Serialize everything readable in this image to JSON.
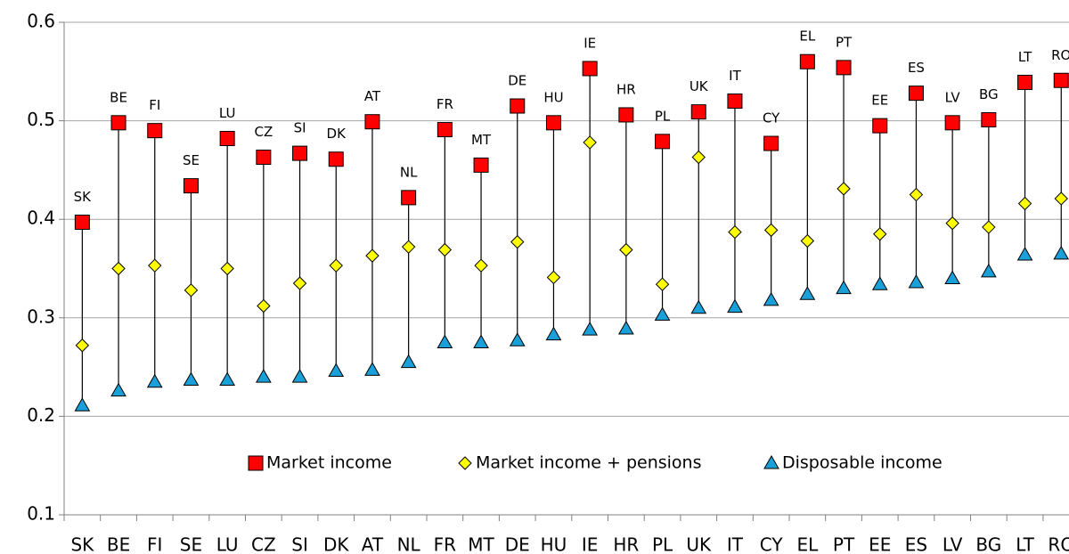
{
  "chart_data": {
    "type": "dotrange",
    "categories": [
      "SK",
      "BE",
      "FI",
      "SE",
      "LU",
      "CZ",
      "SI",
      "DK",
      "AT",
      "NL",
      "FR",
      "MT",
      "DE",
      "HU",
      "IE",
      "HR",
      "PL",
      "UK",
      "IT",
      "CY",
      "EL",
      "PT",
      "EE",
      "ES",
      "LV",
      "BG",
      "LT",
      "RO"
    ],
    "series": [
      {
        "name": "Market income",
        "color": "#ff0000",
        "marker": "square",
        "values": [
          0.397,
          0.498,
          0.49,
          0.434,
          0.482,
          0.463,
          0.467,
          0.461,
          0.499,
          0.422,
          0.491,
          0.455,
          0.515,
          0.498,
          0.553,
          0.506,
          0.479,
          0.509,
          0.52,
          0.477,
          0.56,
          0.554,
          0.495,
          0.528,
          0.498,
          0.501,
          0.539,
          0.541
        ]
      },
      {
        "name": "Market income + pensions",
        "color": "#ffff00",
        "marker": "diamond",
        "values": [
          0.272,
          0.35,
          0.353,
          0.328,
          0.35,
          0.312,
          0.335,
          0.353,
          0.363,
          0.372,
          0.369,
          0.353,
          0.377,
          0.341,
          0.478,
          0.369,
          0.334,
          0.463,
          0.387,
          0.389,
          0.378,
          0.431,
          0.385,
          0.425,
          0.396,
          0.392,
          0.416,
          0.421
        ]
      },
      {
        "name": "Disposable income",
        "color": "#1aa0d8",
        "marker": "triangle",
        "values": [
          0.211,
          0.226,
          0.235,
          0.237,
          0.237,
          0.24,
          0.24,
          0.246,
          0.247,
          0.255,
          0.275,
          0.275,
          0.277,
          0.283,
          0.288,
          0.289,
          0.303,
          0.31,
          0.311,
          0.318,
          0.324,
          0.33,
          0.334,
          0.336,
          0.34,
          0.347,
          0.364,
          0.365
        ]
      }
    ],
    "ylim": [
      0.1,
      0.6
    ],
    "yticks": [
      0.1,
      0.2,
      0.3,
      0.4,
      0.5,
      0.6
    ],
    "grid": true,
    "legend": "bottom"
  }
}
